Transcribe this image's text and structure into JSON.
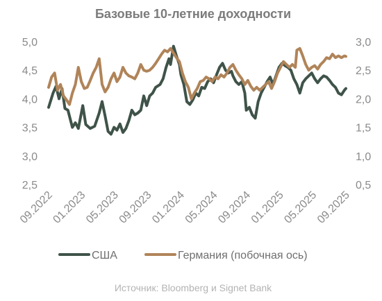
{
  "chart_data": {
    "type": "line",
    "title": "Базовые 10-летние доходности",
    "source": "Источник: Bloomberg и Signet Bank",
    "x_tick_labels": [
      "09.2022",
      "01.2023",
      "05.2023",
      "09.2023",
      "01.2024",
      "05.2024",
      "09.2024",
      "01.2025",
      "05.2025",
      "09.2025"
    ],
    "y_left": {
      "ticks": [
        "2,5",
        "3,0",
        "3,5",
        "4,0",
        "4,5",
        "5,0"
      ],
      "range": [
        2.5,
        5.0
      ]
    },
    "y_right": {
      "ticks": [
        "0,5",
        "1,0",
        "1,5",
        "2,0",
        "2,5",
        "3,0"
      ],
      "range": [
        0.5,
        3.0
      ]
    },
    "grid": false,
    "legend_position": "bottom",
    "series": [
      {
        "name": "США",
        "axis": "left",
        "color": "#3f5349",
        "points": [
          [
            0,
            3.85
          ],
          [
            0.3,
            4.1
          ],
          [
            0.5,
            4.22
          ],
          [
            0.7,
            4.0
          ],
          [
            0.9,
            4.18
          ],
          [
            1.1,
            3.83
          ],
          [
            1.3,
            3.8
          ],
          [
            1.6,
            3.5
          ],
          [
            1.8,
            3.58
          ],
          [
            2.0,
            3.48
          ],
          [
            2.3,
            3.88
          ],
          [
            2.5,
            3.55
          ],
          [
            2.8,
            3.48
          ],
          [
            3.1,
            3.52
          ],
          [
            3.4,
            3.75
          ],
          [
            3.6,
            3.95
          ],
          [
            3.8,
            3.7
          ],
          [
            4.0,
            3.43
          ],
          [
            4.2,
            3.38
          ],
          [
            4.4,
            3.5
          ],
          [
            4.6,
            3.45
          ],
          [
            4.8,
            3.56
          ],
          [
            5.0,
            3.41
          ],
          [
            5.2,
            3.48
          ],
          [
            5.4,
            3.62
          ],
          [
            5.6,
            3.8
          ],
          [
            5.8,
            3.72
          ],
          [
            6.0,
            3.75
          ],
          [
            6.2,
            3.8
          ],
          [
            6.4,
            4.05
          ],
          [
            6.6,
            3.88
          ],
          [
            6.8,
            4.05
          ],
          [
            7.0,
            4.1
          ],
          [
            7.2,
            4.2
          ],
          [
            7.5,
            4.25
          ],
          [
            7.7,
            4.35
          ],
          [
            7.9,
            4.55
          ],
          [
            8.1,
            4.7
          ],
          [
            8.2,
            4.6
          ],
          [
            8.4,
            4.92
          ],
          [
            8.6,
            4.75
          ],
          [
            8.8,
            4.6
          ],
          [
            8.9,
            4.42
          ],
          [
            9.1,
            4.25
          ],
          [
            9.3,
            3.95
          ],
          [
            9.5,
            3.9
          ],
          [
            9.7,
            3.98
          ],
          [
            9.9,
            4.1
          ],
          [
            10.1,
            4.05
          ],
          [
            10.3,
            4.2
          ],
          [
            10.5,
            4.18
          ],
          [
            10.7,
            4.3
          ],
          [
            10.9,
            4.35
          ],
          [
            11.1,
            4.28
          ],
          [
            11.3,
            4.42
          ],
          [
            11.5,
            4.55
          ],
          [
            11.7,
            4.62
          ],
          [
            11.9,
            4.5
          ],
          [
            12.1,
            4.45
          ],
          [
            12.3,
            4.48
          ],
          [
            12.4,
            4.4
          ],
          [
            12.6,
            4.3
          ],
          [
            12.8,
            4.25
          ],
          [
            13.0,
            4.3
          ],
          [
            13.2,
            4.1
          ],
          [
            13.3,
            3.8
          ],
          [
            13.5,
            3.85
          ],
          [
            13.7,
            3.72
          ],
          [
            13.9,
            3.66
          ],
          [
            14.1,
            3.95
          ],
          [
            14.3,
            4.1
          ],
          [
            14.5,
            4.2
          ],
          [
            14.7,
            4.3
          ],
          [
            14.9,
            4.38
          ],
          [
            15.1,
            4.25
          ],
          [
            15.3,
            4.4
          ],
          [
            15.5,
            4.55
          ],
          [
            15.7,
            4.62
          ],
          [
            15.9,
            4.58
          ],
          [
            16.1,
            4.55
          ],
          [
            16.3,
            4.5
          ],
          [
            16.5,
            4.35
          ],
          [
            16.7,
            4.25
          ],
          [
            16.9,
            4.1
          ],
          [
            17.1,
            4.28
          ],
          [
            17.3,
            4.35
          ],
          [
            17.5,
            4.4
          ],
          [
            17.7,
            4.45
          ],
          [
            17.9,
            4.35
          ],
          [
            18.1,
            4.28
          ],
          [
            18.3,
            4.35
          ],
          [
            18.5,
            4.4
          ],
          [
            18.7,
            4.38
          ],
          [
            18.9,
            4.32
          ],
          [
            19.1,
            4.25
          ],
          [
            19.3,
            4.2
          ],
          [
            19.5,
            4.1
          ],
          [
            19.7,
            4.07
          ],
          [
            19.9,
            4.15
          ],
          [
            20.0,
            4.18
          ]
        ]
      },
      {
        "name": "Германия (побочная ось)",
        "axis": "right",
        "color": "#b08459",
        "points": [
          [
            0,
            2.2
          ],
          [
            0.2,
            2.38
          ],
          [
            0.4,
            2.45
          ],
          [
            0.6,
            2.15
          ],
          [
            0.8,
            2.25
          ],
          [
            1.0,
            2.05
          ],
          [
            1.2,
            1.98
          ],
          [
            1.4,
            1.9
          ],
          [
            1.6,
            2.1
          ],
          [
            1.8,
            2.25
          ],
          [
            2.0,
            2.55
          ],
          [
            2.2,
            2.3
          ],
          [
            2.4,
            2.18
          ],
          [
            2.6,
            2.2
          ],
          [
            2.8,
            2.32
          ],
          [
            3.0,
            2.45
          ],
          [
            3.2,
            2.55
          ],
          [
            3.4,
            2.7
          ],
          [
            3.6,
            2.25
          ],
          [
            3.8,
            2.12
          ],
          [
            4.0,
            2.2
          ],
          [
            4.2,
            2.35
          ],
          [
            4.4,
            2.45
          ],
          [
            4.6,
            2.3
          ],
          [
            4.8,
            2.38
          ],
          [
            5.0,
            2.55
          ],
          [
            5.2,
            2.45
          ],
          [
            5.4,
            2.4
          ],
          [
            5.6,
            2.38
          ],
          [
            5.8,
            2.35
          ],
          [
            6.0,
            2.45
          ],
          [
            6.2,
            2.6
          ],
          [
            6.4,
            2.5
          ],
          [
            6.6,
            2.48
          ],
          [
            6.8,
            2.5
          ],
          [
            7.0,
            2.55
          ],
          [
            7.2,
            2.62
          ],
          [
            7.4,
            2.7
          ],
          [
            7.6,
            2.78
          ],
          [
            7.8,
            2.85
          ],
          [
            8.0,
            2.82
          ],
          [
            8.2,
            2.88
          ],
          [
            8.4,
            2.8
          ],
          [
            8.6,
            2.72
          ],
          [
            8.8,
            2.65
          ],
          [
            9.0,
            2.45
          ],
          [
            9.2,
            2.3
          ],
          [
            9.4,
            2.2
          ],
          [
            9.6,
            2.0
          ],
          [
            9.8,
            2.1
          ],
          [
            10.0,
            2.18
          ],
          [
            10.2,
            2.3
          ],
          [
            10.4,
            2.32
          ],
          [
            10.6,
            2.38
          ],
          [
            10.8,
            2.35
          ],
          [
            11.0,
            2.3
          ],
          [
            11.2,
            2.38
          ],
          [
            11.4,
            2.35
          ],
          [
            11.6,
            2.42
          ],
          [
            11.8,
            2.38
          ],
          [
            12.0,
            2.45
          ],
          [
            12.2,
            2.55
          ],
          [
            12.4,
            2.6
          ],
          [
            12.6,
            2.5
          ],
          [
            12.8,
            2.42
          ],
          [
            13.0,
            2.35
          ],
          [
            13.2,
            2.25
          ],
          [
            13.4,
            2.32
          ],
          [
            13.6,
            2.22
          ],
          [
            13.8,
            2.15
          ],
          [
            14.0,
            2.2
          ],
          [
            14.2,
            2.15
          ],
          [
            14.4,
            2.2
          ],
          [
            14.6,
            2.25
          ],
          [
            14.8,
            2.3
          ],
          [
            15.0,
            2.18
          ],
          [
            15.2,
            2.3
          ],
          [
            15.4,
            2.45
          ],
          [
            15.6,
            2.55
          ],
          [
            15.8,
            2.65
          ],
          [
            16.0,
            2.6
          ],
          [
            16.2,
            2.55
          ],
          [
            16.4,
            2.6
          ],
          [
            16.6,
            2.55
          ],
          [
            16.7,
            2.85
          ],
          [
            16.9,
            2.88
          ],
          [
            17.1,
            2.75
          ],
          [
            17.3,
            2.6
          ],
          [
            17.5,
            2.5
          ],
          [
            17.7,
            2.55
          ],
          [
            17.9,
            2.58
          ],
          [
            18.1,
            2.52
          ],
          [
            18.3,
            2.6
          ],
          [
            18.5,
            2.65
          ],
          [
            18.7,
            2.72
          ],
          [
            18.9,
            2.7
          ],
          [
            19.1,
            2.78
          ],
          [
            19.3,
            2.72
          ],
          [
            19.5,
            2.75
          ],
          [
            19.7,
            2.72
          ],
          [
            19.9,
            2.75
          ],
          [
            20.0,
            2.74
          ]
        ]
      }
    ]
  }
}
